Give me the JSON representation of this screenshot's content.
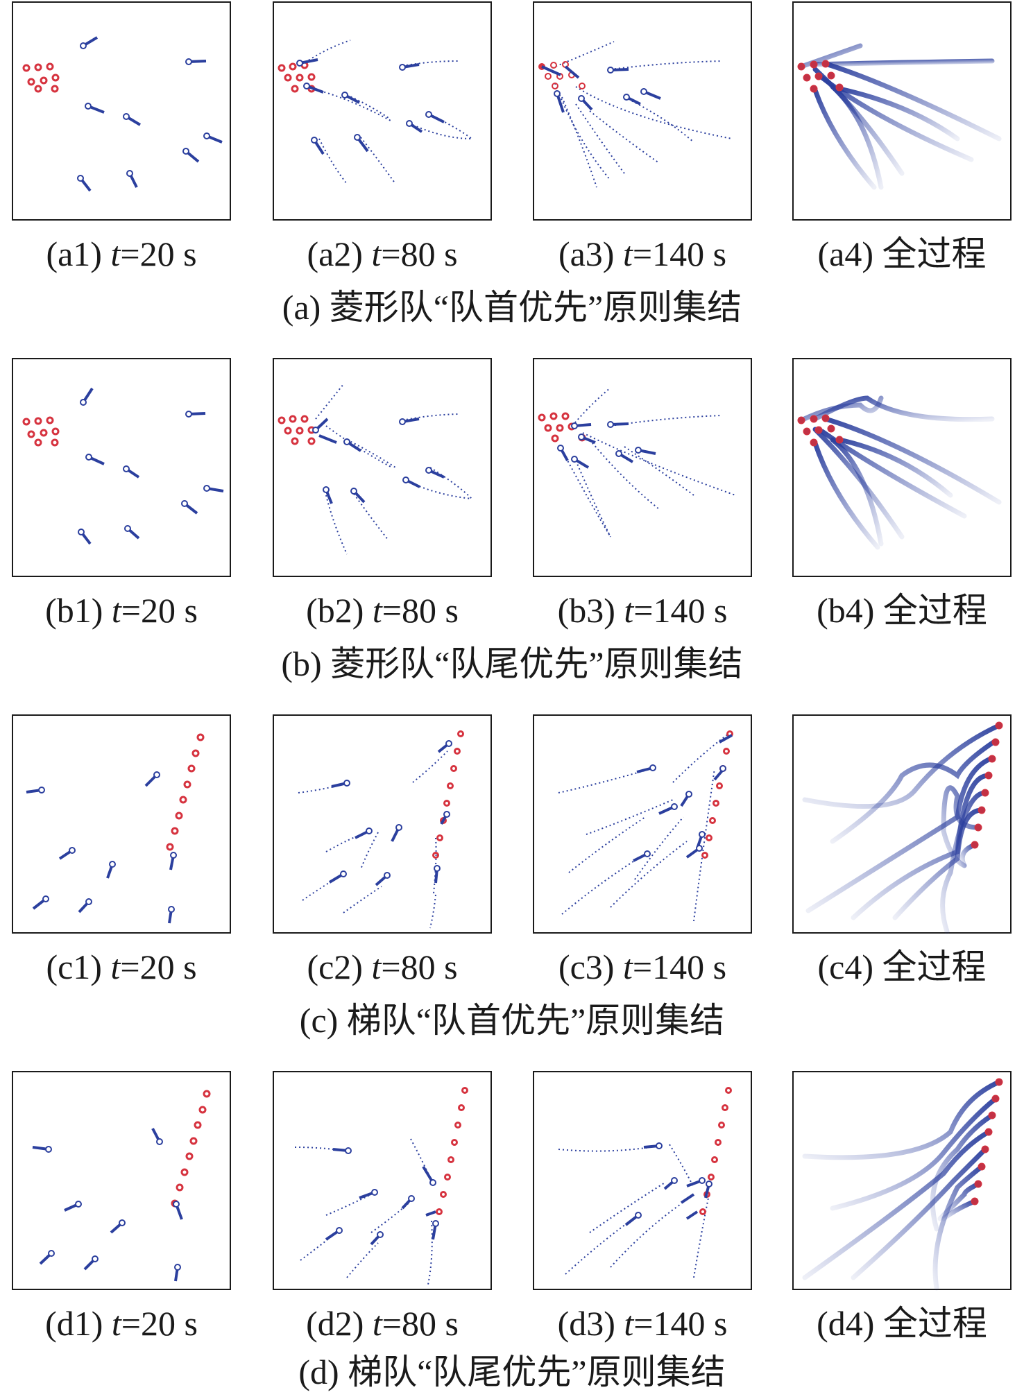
{
  "rows": [
    {
      "id": "a",
      "caption": "(a) 菱形队“队首优先”原则集结",
      "panels": [
        {
          "tag": "(a1)",
          "t_var": "t",
          "t_rest": "=20 s"
        },
        {
          "tag": "(a2)",
          "t_var": "t",
          "t_rest": "=80 s"
        },
        {
          "tag": "(a3)",
          "t_var": "t",
          "t_rest": "=140 s"
        },
        {
          "tag": "(a4)",
          "t_var": "",
          "t_rest": "全过程"
        }
      ]
    },
    {
      "id": "b",
      "caption": "(b) 菱形队“队尾优先”原则集结",
      "panels": [
        {
          "tag": "(b1)",
          "t_var": "t",
          "t_rest": "=20 s"
        },
        {
          "tag": "(b2)",
          "t_var": "t",
          "t_rest": "=80 s"
        },
        {
          "tag": "(b3)",
          "t_var": "t",
          "t_rest": "=140 s"
        },
        {
          "tag": "(b4)",
          "t_var": "",
          "t_rest": "全过程"
        }
      ]
    },
    {
      "id": "c",
      "caption": "(c) 梯队“队首优先”原则集结",
      "panels": [
        {
          "tag": "(c1)",
          "t_var": "t",
          "t_rest": "=20 s"
        },
        {
          "tag": "(c2)",
          "t_var": "t",
          "t_rest": "=80 s"
        },
        {
          "tag": "(c3)",
          "t_var": "t",
          "t_rest": "=140 s"
        },
        {
          "tag": "(c4)",
          "t_var": "",
          "t_rest": "全过程"
        }
      ]
    },
    {
      "id": "d",
      "caption": "(d) 梯队“队尾优先”原则集结",
      "panels": [
        {
          "tag": "(d1)",
          "t_var": "t",
          "t_rest": "=20 s"
        },
        {
          "tag": "(d2)",
          "t_var": "t",
          "t_rest": "=80 s"
        },
        {
          "tag": "(d3)",
          "t_var": "t",
          "t_rest": "=140 s"
        },
        {
          "tag": "(d4)",
          "t_var": "",
          "t_rest": "全过程"
        }
      ]
    }
  ],
  "colors": {
    "agent": "#2b3f9e",
    "trail": "#2b3f9e",
    "target": "#d6333f",
    "frame": "#1a1a1a"
  }
}
